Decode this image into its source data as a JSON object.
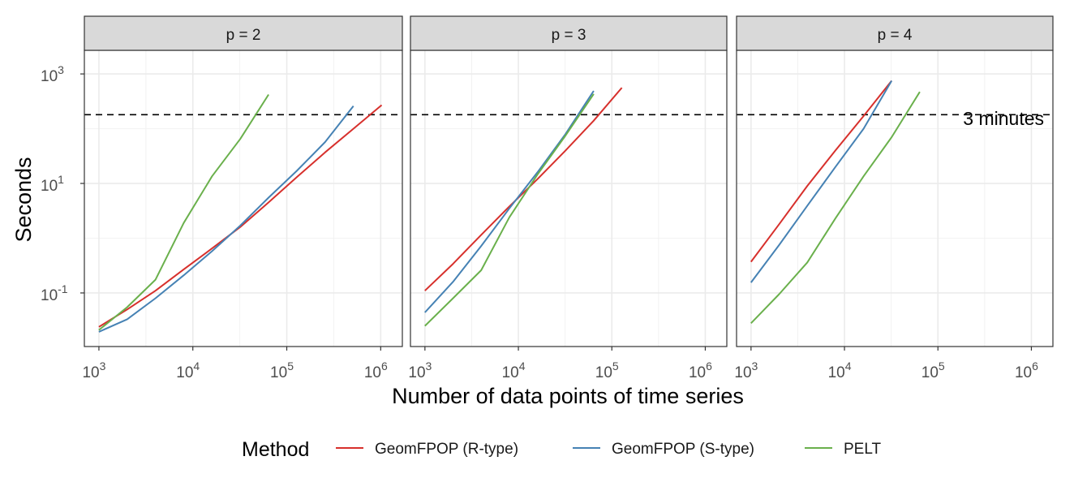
{
  "chart_data": {
    "type": "line",
    "xlabel": "Number of data points of time series",
    "ylabel": "Seconds",
    "x_scale": "log10",
    "y_scale": "log10",
    "xlim": [
      700,
      1700000
    ],
    "ylim": [
      0.0105,
      2700
    ],
    "x_ticks": [
      {
        "value": 1000,
        "base": "10",
        "exp": "3"
      },
      {
        "value": 10000,
        "base": "10",
        "exp": "4"
      },
      {
        "value": 100000,
        "base": "10",
        "exp": "5"
      },
      {
        "value": 1000000,
        "base": "10",
        "exp": "6"
      }
    ],
    "y_ticks": [
      {
        "value": 0.1,
        "base": "10",
        "exp": "-1"
      },
      {
        "value": 10,
        "base": "10",
        "exp": "1"
      },
      {
        "value": 1000,
        "base": "10",
        "exp": "3"
      }
    ],
    "grid": true,
    "threshold": {
      "value": 180,
      "label": "3 minutes",
      "style": "dashed",
      "color": "#000000"
    },
    "legend": {
      "title": "Method",
      "position": "bottom"
    },
    "series_styles": [
      {
        "name": "GeomFPOP (R-type)",
        "color": "#d7302c"
      },
      {
        "name": "GeomFPOP (S-type)",
        "color": "#4682b4"
      },
      {
        "name": "PELT",
        "color": "#6ab04c"
      }
    ],
    "panels": [
      {
        "strip": "p = 2",
        "series": [
          {
            "name": "GeomFPOP (R-type)",
            "points": [
              [
                1000,
                0.024
              ],
              [
                2000,
                0.05
              ],
              [
                4000,
                0.11
              ],
              [
                8000,
                0.27
              ],
              [
                16000,
                0.65
              ],
              [
                32000,
                1.6
              ],
              [
                64000,
                4.5
              ],
              [
                128000,
                13
              ],
              [
                256000,
                37
              ],
              [
                512000,
                100
              ],
              [
                1024000,
                270
              ]
            ]
          },
          {
            "name": "GeomFPOP (S-type)",
            "points": [
              [
                1000,
                0.0195
              ],
              [
                2000,
                0.033
              ],
              [
                4000,
                0.08
              ],
              [
                8000,
                0.21
              ],
              [
                16000,
                0.58
              ],
              [
                32000,
                1.7
              ],
              [
                64000,
                5.5
              ],
              [
                128000,
                17
              ],
              [
                256000,
                57
              ],
              [
                512000,
                260
              ]
            ]
          },
          {
            "name": "PELT",
            "points": [
              [
                1000,
                0.021
              ],
              [
                2000,
                0.055
              ],
              [
                4000,
                0.175
              ],
              [
                8000,
                1.9
              ],
              [
                16000,
                13.5
              ],
              [
                32000,
                65
              ],
              [
                64000,
                420
              ]
            ]
          }
        ]
      },
      {
        "strip": "p = 3",
        "series": [
          {
            "name": "GeomFPOP (R-type)",
            "points": [
              [
                1000,
                0.11
              ],
              [
                2000,
                0.34
              ],
              [
                4000,
                1.15
              ],
              [
                8000,
                3.8
              ],
              [
                16000,
                12
              ],
              [
                32000,
                40
              ],
              [
                64000,
                140
              ],
              [
                128000,
                560
              ]
            ]
          },
          {
            "name": "GeomFPOP (S-type)",
            "points": [
              [
                1000,
                0.044
              ],
              [
                2000,
                0.16
              ],
              [
                4000,
                0.72
              ],
              [
                8000,
                3.5
              ],
              [
                16000,
                16
              ],
              [
                32000,
                80
              ],
              [
                64000,
                490
              ]
            ]
          },
          {
            "name": "PELT",
            "points": [
              [
                1000,
                0.025
              ],
              [
                2000,
                0.08
              ],
              [
                4000,
                0.26
              ],
              [
                8000,
                2.4
              ],
              [
                16000,
                14.5
              ],
              [
                32000,
                75
              ],
              [
                64000,
                430
              ]
            ]
          }
        ]
      },
      {
        "strip": "p = 4",
        "series": [
          {
            "name": "GeomFPOP (R-type)",
            "points": [
              [
                1000,
                0.37
              ],
              [
                2000,
                1.8
              ],
              [
                4000,
                9
              ],
              [
                8000,
                40
              ],
              [
                16000,
                170
              ],
              [
                32000,
                750
              ]
            ]
          },
          {
            "name": "GeomFPOP (S-type)",
            "points": [
              [
                1000,
                0.155
              ],
              [
                2000,
                0.75
              ],
              [
                4000,
                3.9
              ],
              [
                8000,
                20
              ],
              [
                16000,
                100
              ],
              [
                32000,
                750
              ]
            ]
          },
          {
            "name": "PELT",
            "points": [
              [
                1000,
                0.028
              ],
              [
                2000,
                0.095
              ],
              [
                4000,
                0.36
              ],
              [
                8000,
                2.3
              ],
              [
                16000,
                13.5
              ],
              [
                32000,
                70
              ],
              [
                64000,
                470
              ]
            ]
          }
        ]
      }
    ]
  }
}
